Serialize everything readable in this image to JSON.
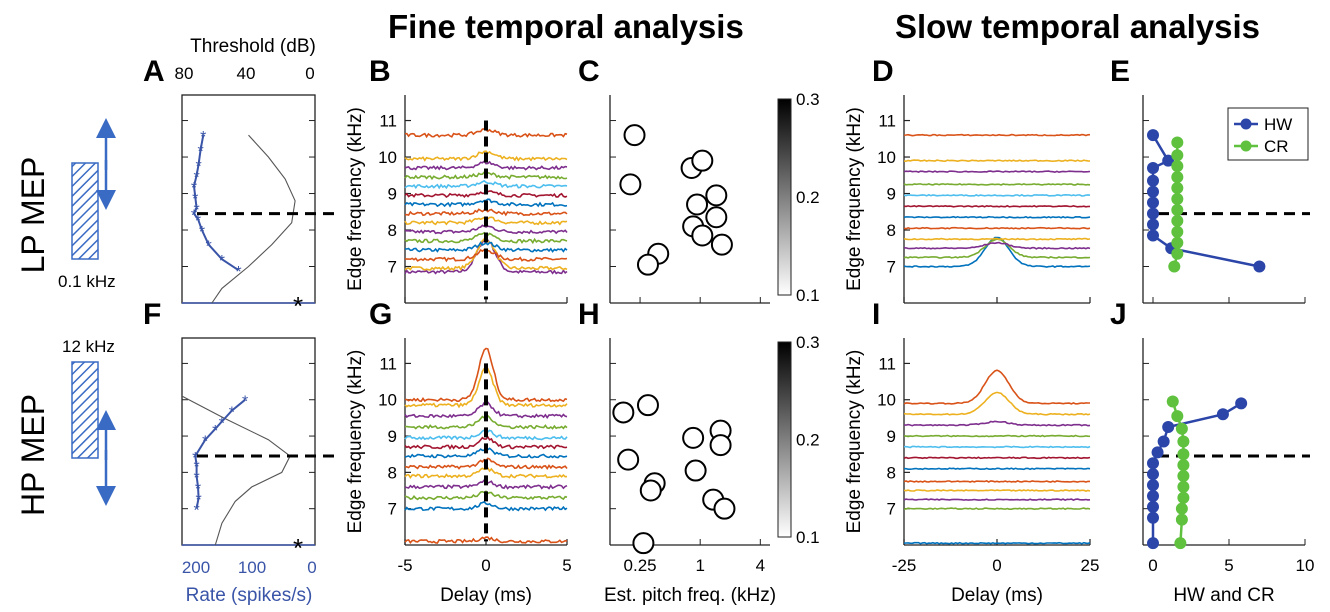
{
  "titles": {
    "fine": "Fine temporal analysis",
    "slow": "Slow temporal analysis"
  },
  "row_labels": [
    "LP MEP",
    "HP MEP"
  ],
  "panel_letters": [
    "A",
    "B",
    "C",
    "D",
    "E",
    "F",
    "G",
    "H",
    "I",
    "J"
  ],
  "stimulus": {
    "lp_freq_label": "0.1 kHz",
    "hp_freq_label": "12 kHz",
    "hatch_color": "#3a6bc4"
  },
  "star": "*",
  "colors": {
    "tuning": "#3a55a8",
    "hw": "#2b45a8",
    "cr": "#5fc13e",
    "series": [
      "#d95319",
      "#edb120",
      "#7e2f8e",
      "#77ac30",
      "#4dbeee",
      "#a2142f",
      "#0072bd",
      "#d95319",
      "#edb120",
      "#7e2f8e",
      "#77ac30",
      "#0072bd"
    ]
  },
  "chart_data": [
    {
      "panel": "A",
      "type": "line",
      "x_top_label": "Threshold (dB)",
      "x_top_ticks": [
        "80",
        "40",
        "0"
      ],
      "x_bottom_label": "Rate (spikes/s)",
      "x_bottom_ticks": [
        "200",
        "100",
        "0"
      ],
      "x_top_lim": [
        80,
        0
      ],
      "x_bottom_lim": [
        200,
        0
      ],
      "y_lim": [
        6,
        11.7
      ],
      "dashed_reference_khz": 8.45,
      "rate_points": [
        {
          "rate": 168,
          "f": 10.6
        },
        {
          "rate": 172,
          "f": 10.2
        },
        {
          "rate": 175,
          "f": 9.8
        },
        {
          "rate": 178,
          "f": 9.5
        },
        {
          "rate": 182,
          "f": 9.2
        },
        {
          "rate": 180,
          "f": 8.9
        },
        {
          "rate": 178,
          "f": 8.6
        },
        {
          "rate": 182,
          "f": 8.45
        },
        {
          "rate": 176,
          "f": 8.3
        },
        {
          "rate": 170,
          "f": 8.0
        },
        {
          "rate": 160,
          "f": 7.6
        },
        {
          "rate": 140,
          "f": 7.2
        },
        {
          "rate": 115,
          "f": 6.9
        }
      ],
      "threshold_curve": [
        {
          "db": 40,
          "f": 10.6
        },
        {
          "db": 28,
          "f": 10.0
        },
        {
          "db": 18,
          "f": 9.4
        },
        {
          "db": 12,
          "f": 8.8
        },
        {
          "db": 14,
          "f": 8.2
        },
        {
          "db": 26,
          "f": 7.6
        },
        {
          "db": 40,
          "f": 7.0
        },
        {
          "db": 56,
          "f": 6.4
        },
        {
          "db": 62,
          "f": 6.0
        }
      ]
    },
    {
      "panel": "B",
      "type": "line",
      "xlabel": "Delay (ms)",
      "ylabel": "Edge frequency (kHz)",
      "x_ticks": [
        "-5",
        "0",
        "5"
      ],
      "x_lim": [
        -5,
        5
      ],
      "y_ticks": [
        "7",
        "8",
        "9",
        "10",
        "11"
      ],
      "y_lim": [
        6,
        11.7
      ],
      "series_offsets_khz": [
        6.85,
        6.95,
        7.2,
        7.45,
        7.7,
        7.95,
        8.2,
        8.45,
        8.7,
        8.95,
        9.2,
        9.45,
        9.7,
        9.95,
        10.6
      ],
      "peaks_at_zero_ms": [
        0.9,
        0.8,
        0.25,
        0.2,
        0.2,
        0.15,
        0.15,
        0.1,
        0.12,
        0.1,
        0.12,
        0.1,
        0.15,
        0.2,
        0.15
      ]
    },
    {
      "panel": "C",
      "type": "scatter",
      "xlabel": "Est. pitch freq. (kHz)",
      "x_ticks": [
        "0.25",
        "1",
        "4"
      ],
      "x_scale": "log2",
      "x_lim_khz": [
        0.125,
        5
      ],
      "y_lim": [
        6,
        11.7
      ],
      "points": [
        {
          "x": 0.22,
          "y": 10.6
        },
        {
          "x": 0.2,
          "y": 9.25
        },
        {
          "x": 0.82,
          "y": 9.7
        },
        {
          "x": 1.05,
          "y": 9.9
        },
        {
          "x": 1.45,
          "y": 8.95
        },
        {
          "x": 0.93,
          "y": 8.7
        },
        {
          "x": 1.45,
          "y": 8.35
        },
        {
          "x": 0.85,
          "y": 8.1
        },
        {
          "x": 1.05,
          "y": 7.85
        },
        {
          "x": 1.65,
          "y": 7.6
        },
        {
          "x": 0.38,
          "y": 7.35
        },
        {
          "x": 0.3,
          "y": 7.05
        }
      ],
      "colorbar_ticks": [
        "0.3",
        "0.2",
        "0.1"
      ],
      "colorbar_lim": [
        0.1,
        0.3
      ]
    },
    {
      "panel": "D",
      "type": "line",
      "xlabel": "Delay (ms)",
      "ylabel": "Edge frequency (kHz)",
      "x_ticks": [
        "-25",
        "0",
        "25"
      ],
      "x_lim": [
        -25,
        25
      ],
      "y_ticks": [
        "7",
        "8",
        "9",
        "10",
        "11"
      ],
      "y_lim": [
        6,
        11.7
      ],
      "series_offsets_khz": [
        7.0,
        7.25,
        7.5,
        7.75,
        8.05,
        8.35,
        8.65,
        8.95,
        9.25,
        9.6,
        9.9,
        10.6
      ],
      "peaks_at_zero_ms": [
        0.8,
        0.5,
        0.15,
        0,
        0,
        0,
        0,
        0,
        0,
        0,
        0,
        0
      ]
    },
    {
      "panel": "E",
      "type": "line",
      "x_lim": [
        0,
        10
      ],
      "y_lim": [
        6,
        11.7
      ],
      "legend": [
        "HW",
        "CR"
      ],
      "legend_position": "top-right",
      "dashed_reference_khz": 8.45,
      "HW": [
        {
          "x": 0,
          "y": 10.6
        },
        {
          "x": 1.0,
          "y": 9.9
        },
        {
          "x": 0,
          "y": 9.7
        },
        {
          "x": 0,
          "y": 9.35
        },
        {
          "x": 0,
          "y": 9.05
        },
        {
          "x": 0,
          "y": 8.75
        },
        {
          "x": 0,
          "y": 8.45
        },
        {
          "x": 0,
          "y": 8.15
        },
        {
          "x": 0,
          "y": 7.85
        },
        {
          "x": 1.2,
          "y": 7.5
        },
        {
          "x": 7.0,
          "y": 7.0
        }
      ],
      "CR": [
        {
          "x": 1.6,
          "y": 10.4
        },
        {
          "x": 1.6,
          "y": 10.05
        },
        {
          "x": 1.6,
          "y": 9.75
        },
        {
          "x": 1.6,
          "y": 9.45
        },
        {
          "x": 1.6,
          "y": 9.15
        },
        {
          "x": 1.6,
          "y": 8.85
        },
        {
          "x": 1.6,
          "y": 8.55
        },
        {
          "x": 1.6,
          "y": 8.25
        },
        {
          "x": 1.6,
          "y": 7.95
        },
        {
          "x": 1.6,
          "y": 7.65
        },
        {
          "x": 1.6,
          "y": 7.35
        },
        {
          "x": 1.4,
          "y": 7.0
        }
      ]
    },
    {
      "panel": "F",
      "type": "line",
      "y_lim": [
        6,
        11.7
      ],
      "dashed_reference_khz": 8.45,
      "rate_points": [
        {
          "rate": 105,
          "f": 10.0
        },
        {
          "rate": 125,
          "f": 9.7
        },
        {
          "rate": 140,
          "f": 9.4
        },
        {
          "rate": 150,
          "f": 9.2
        },
        {
          "rate": 165,
          "f": 8.9
        },
        {
          "rate": 180,
          "f": 8.45
        },
        {
          "rate": 178,
          "f": 8.2
        },
        {
          "rate": 178,
          "f": 7.9
        },
        {
          "rate": 176,
          "f": 7.6
        },
        {
          "rate": 175,
          "f": 7.3
        },
        {
          "rate": 178,
          "f": 7.0
        }
      ],
      "threshold_curve": [
        {
          "db": 80,
          "f": 10.1
        },
        {
          "db": 55,
          "f": 9.5
        },
        {
          "db": 28,
          "f": 8.9
        },
        {
          "db": 15,
          "f": 8.45
        },
        {
          "db": 20,
          "f": 8.0
        },
        {
          "db": 38,
          "f": 7.6
        },
        {
          "db": 48,
          "f": 7.2
        },
        {
          "db": 56,
          "f": 6.6
        },
        {
          "db": 60,
          "f": 6.0
        }
      ]
    },
    {
      "panel": "G",
      "type": "line",
      "xlabel": "Delay (ms)",
      "ylabel": "Edge frequency (kHz)",
      "x_ticks": [
        "-5",
        "0",
        "5"
      ],
      "x_lim": [
        -5,
        5
      ],
      "y_ticks": [
        "7",
        "8",
        "9",
        "10",
        "11"
      ],
      "y_lim": [
        6,
        11.7
      ],
      "series_offsets_khz": [
        6.1,
        7.0,
        7.3,
        7.6,
        7.9,
        8.15,
        8.45,
        8.7,
        8.95,
        9.25,
        9.55,
        9.85,
        10.0
      ],
      "peaks_at_zero_ms": [
        0.1,
        0.15,
        0.15,
        0.15,
        0.2,
        0.2,
        0.2,
        0.25,
        0.2,
        0.3,
        0.35,
        1.0,
        1.4
      ]
    },
    {
      "panel": "H",
      "type": "scatter",
      "xlabel": "Est. pitch freq. (kHz)",
      "x_ticks": [
        "0.25",
        "1",
        "4"
      ],
      "x_scale": "log2",
      "x_lim_khz": [
        0.125,
        5
      ],
      "y_lim": [
        6,
        11.7
      ],
      "points": [
        {
          "x": 0.17,
          "y": 9.65
        },
        {
          "x": 0.3,
          "y": 9.85
        },
        {
          "x": 0.19,
          "y": 8.35
        },
        {
          "x": 0.85,
          "y": 8.95
        },
        {
          "x": 1.6,
          "y": 9.15
        },
        {
          "x": 1.6,
          "y": 8.75
        },
        {
          "x": 0.9,
          "y": 8.05
        },
        {
          "x": 0.35,
          "y": 7.7
        },
        {
          "x": 0.32,
          "y": 7.5
        },
        {
          "x": 1.35,
          "y": 7.25
        },
        {
          "x": 1.75,
          "y": 7.0
        },
        {
          "x": 0.27,
          "y": 6.05
        }
      ],
      "colorbar_ticks": [
        "0.3",
        "0.2",
        "0.1"
      ],
      "colorbar_lim": [
        0.1,
        0.3
      ]
    },
    {
      "panel": "I",
      "type": "line",
      "xlabel": "Delay (ms)",
      "ylabel": "Edge frequency (kHz)",
      "x_ticks": [
        "-25",
        "0",
        "25"
      ],
      "x_lim": [
        -25,
        25
      ],
      "y_ticks": [
        "7",
        "8",
        "9",
        "10",
        "11"
      ],
      "y_lim": [
        6,
        11.7
      ],
      "series_offsets_khz": [
        6.05,
        7.0,
        7.25,
        7.5,
        7.75,
        8.1,
        8.4,
        8.7,
        9.0,
        9.3,
        9.6,
        9.9
      ],
      "peaks_at_zero_ms": [
        0,
        0,
        0,
        0,
        0,
        0,
        0,
        0,
        0,
        0.1,
        0.6,
        0.9
      ]
    },
    {
      "panel": "J",
      "type": "line",
      "xlabel": "HW and CR",
      "x_ticks": [
        "0",
        "5",
        "10"
      ],
      "x_lim": [
        0,
        10
      ],
      "y_lim": [
        6,
        11.7
      ],
      "dashed_reference_khz": 8.45,
      "HW": [
        {
          "x": 5.8,
          "y": 9.9
        },
        {
          "x": 4.6,
          "y": 9.6
        },
        {
          "x": 1.0,
          "y": 9.25
        },
        {
          "x": 0.7,
          "y": 8.85
        },
        {
          "x": 0.3,
          "y": 8.55
        },
        {
          "x": 0,
          "y": 8.25
        },
        {
          "x": 0,
          "y": 7.95
        },
        {
          "x": 0,
          "y": 7.65
        },
        {
          "x": 0,
          "y": 7.35
        },
        {
          "x": 0,
          "y": 7.05
        },
        {
          "x": 0,
          "y": 6.75
        },
        {
          "x": 0,
          "y": 6.05
        }
      ],
      "CR": [
        {
          "x": 1.3,
          "y": 9.95
        },
        {
          "x": 1.6,
          "y": 9.55
        },
        {
          "x": 1.9,
          "y": 9.2
        },
        {
          "x": 2.0,
          "y": 8.85
        },
        {
          "x": 2.0,
          "y": 8.5
        },
        {
          "x": 2.0,
          "y": 8.2
        },
        {
          "x": 2.0,
          "y": 7.9
        },
        {
          "x": 2.0,
          "y": 7.6
        },
        {
          "x": 2.0,
          "y": 7.3
        },
        {
          "x": 1.9,
          "y": 7.0
        },
        {
          "x": 1.9,
          "y": 6.7
        },
        {
          "x": 1.8,
          "y": 6.05
        }
      ]
    }
  ]
}
